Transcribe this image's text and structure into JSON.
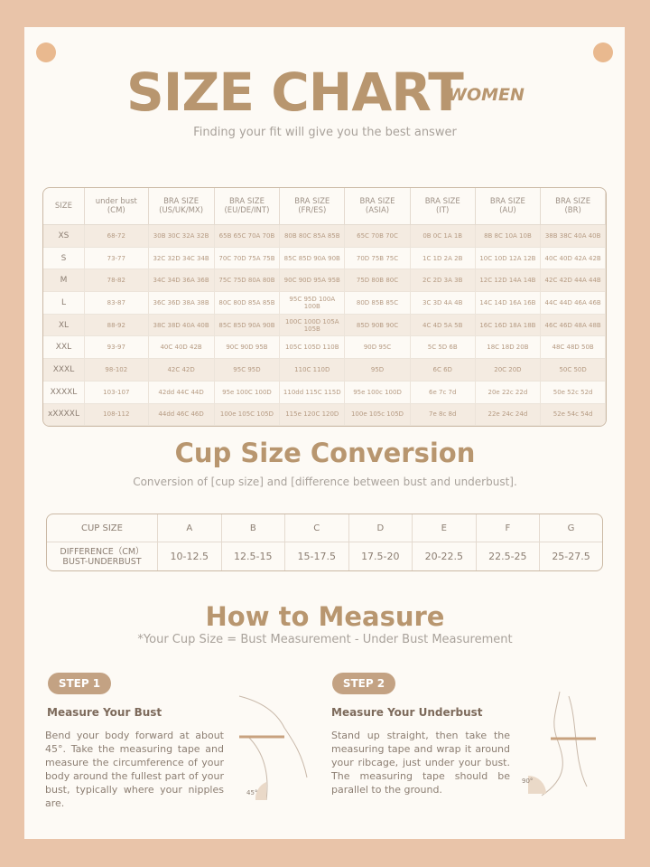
{
  "header": {
    "title": "SIZE CHART",
    "tag": "WOMEN",
    "subtitle": "Finding your fit will give you the best answer"
  },
  "size_table": {
    "headers": [
      [
        "SIZE",
        ""
      ],
      [
        "under bust",
        "(CM)"
      ],
      [
        "BRA SIZE",
        "(US/UK/MX)"
      ],
      [
        "BRA SIZE",
        "(EU/DE/INT)"
      ],
      [
        "BRA SIZE",
        "(FR/ES)"
      ],
      [
        "BRA SIZE",
        "(ASIA)"
      ],
      [
        "BRA SIZE",
        "(IT)"
      ],
      [
        "BRA SIZE",
        "(AU)"
      ],
      [
        "BRA SIZE",
        "(BR)"
      ]
    ],
    "rows": [
      [
        "XS",
        "68-72",
        "30B 30C 32A 32B",
        "65B 65C 70A 70B",
        "80B 80C 85A 85B",
        "65C 70B 70C",
        "0B 0C 1A 1B",
        "8B 8C 10A 10B",
        "38B 38C 40A 40B"
      ],
      [
        "S",
        "73-77",
        "32C 32D 34C 34B",
        "70C 70D 75A 75B",
        "85C 85D 90A 90B",
        "70D 75B 75C",
        "1C 1D 2A 2B",
        "10C 10D 12A 12B",
        "40C 40D 42A 42B"
      ],
      [
        "M",
        "78-82",
        "34C 34D 36A 36B",
        "75C 75D 80A 80B",
        "90C 90D 95A 95B",
        "75D 80B 80C",
        "2C 2D 3A 3B",
        "12C 12D 14A 14B",
        "42C 42D 44A 44B"
      ],
      [
        "L",
        "83-87",
        "36C 36D 38A 38B",
        "80C 80D 85A 85B",
        "95C 95D 100A 100B",
        "80D 85B 85C",
        "3C 3D 4A 4B",
        "14C 14D 16A 16B",
        "44C 44D 46A 46B"
      ],
      [
        "XL",
        "88-92",
        "38C 38D 40A 40B",
        "85C 85D 90A 90B",
        "100C 100D 105A 105B",
        "85D 90B 90C",
        "4C 4D 5A 5B",
        "16C 16D 18A 18B",
        "46C 46D 48A 48B"
      ],
      [
        "XXL",
        "93-97",
        "40C 40D 42B",
        "90C 90D 95B",
        "105C 105D 110B",
        "90D 95C",
        "5C 5D 6B",
        "18C 18D 20B",
        "48C 48D 50B"
      ],
      [
        "XXXL",
        "98-102",
        "42C 42D",
        "95C 95D",
        "110C 110D",
        "95D",
        "6C 6D",
        "20C 20D",
        "50C 50D"
      ],
      [
        "XXXXL",
        "103-107",
        "42dd 44C 44D",
        "95e 100C 100D",
        "110dd 115C 115D",
        "95e 100c 100D",
        "6e 7c 7d",
        "20e 22c 22d",
        "50e 52c 52d"
      ],
      [
        "xXXXXL",
        "108-112",
        "44dd 46C 46D",
        "100e 105C 105D",
        "115e 120C 120D",
        "100e 105c 105D",
        "7e 8c 8d",
        "22e 24c 24d",
        "52e 54c 54d"
      ]
    ]
  },
  "cup": {
    "title": "Cup Size Conversion",
    "subtitle": "Conversion of [cup size] and [difference between bust and underbust].",
    "row1_label": "CUP SIZE",
    "cups": [
      "A",
      "B",
      "C",
      "D",
      "E",
      "F",
      "G"
    ],
    "row2_label": [
      "DIFFERENCE（CM）",
      "BUST-UNDERBUST"
    ],
    "diffs": [
      "10-12.5",
      "12.5-15",
      "15-17.5",
      "17.5-20",
      "20-22.5",
      "22.5-25",
      "25-27.5"
    ]
  },
  "measure": {
    "title": "How to Measure",
    "subtitle": "*Your Cup Size = Bust Measurement - Under Bust Measurement",
    "steps": [
      {
        "badge": "STEP 1",
        "heading": "Measure Your Bust",
        "text": "Bend your body forward at about 45°. Take the measuring tape and measure the circumference of your body around the fullest part of your bust, typically where your nipples are.",
        "angle": "45°"
      },
      {
        "badge": "STEP 2",
        "heading": "Measure Your Underbust",
        "text": "Stand up straight, then take the measuring tape and wrap it around your ribcage, just under your bust. The measuring tape should be parallel to the ground.",
        "angle": "90°"
      }
    ]
  },
  "colors": {
    "accent": "#b8966f",
    "background": "#e9c4a9",
    "card": "#fdfaf5"
  }
}
